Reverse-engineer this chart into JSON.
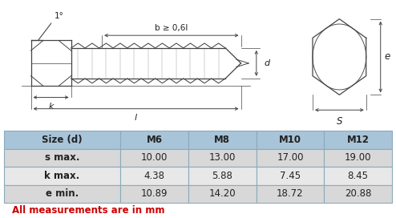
{
  "table_headers": [
    "Size (d)",
    "M6",
    "M8",
    "M10",
    "M12"
  ],
  "table_rows": [
    [
      "s max.",
      "10.00",
      "13.00",
      "17.00",
      "19.00"
    ],
    [
      "k max.",
      "4.38",
      "5.88",
      "7.45",
      "8.45"
    ],
    [
      "e min.",
      "10.89",
      "14.20",
      "18.72",
      "20.88"
    ]
  ],
  "footer_text": "All measurements are in mm",
  "footer_color": "#cc0000",
  "header_bg": "#a8c4d8",
  "row_bg_odd": "#d8d8d8",
  "row_bg_even": "#e8e8e8",
  "border_color": "#8baabb",
  "text_color": "#222222",
  "diagram_bg": "#ffffff",
  "line_color": "#444444",
  "fig_width": 4.94,
  "fig_height": 2.72,
  "dpi": 100
}
